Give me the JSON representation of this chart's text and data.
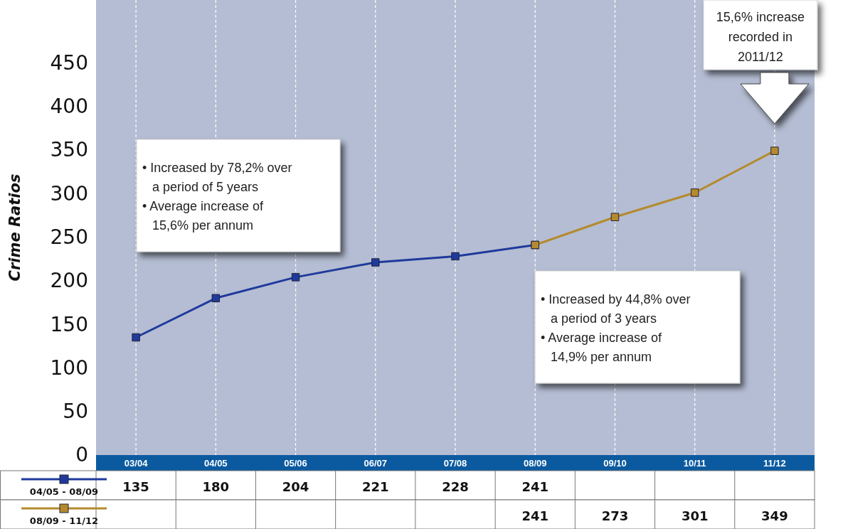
{
  "chart_data": {
    "type": "line",
    "ylabel": "Crime Ratios",
    "categories": [
      "03/04",
      "04/05",
      "05/06",
      "06/07",
      "07/08",
      "08/09",
      "09/10",
      "10/11",
      "11/12"
    ],
    "series": [
      {
        "name": "04/05 - 08/09",
        "color": "#1f3a9c",
        "values": [
          135,
          180,
          204,
          221,
          228,
          241,
          null,
          null,
          null
        ]
      },
      {
        "name": "08/09 - 11/12",
        "color": "#b58a2e",
        "values": [
          null,
          null,
          null,
          null,
          null,
          241,
          273,
          301,
          349
        ]
      }
    ],
    "ylim": [
      0,
      522
    ],
    "yticks": [
      0,
      50,
      100,
      150,
      200,
      250,
      300,
      350,
      400,
      450
    ],
    "grid": "x",
    "marker": "square",
    "line_style": "solid",
    "data_labels": true,
    "legend": "bottom",
    "annotations": [
      "• Increased by 78,2% over a period of 5 years\n• Average increase of 15,6% per annum",
      "• Increased by 44,8% over a period of 3 years\n• Average increase of 14,9% per annum",
      "15,6% increase recorded in 2011/12"
    ]
  }
}
